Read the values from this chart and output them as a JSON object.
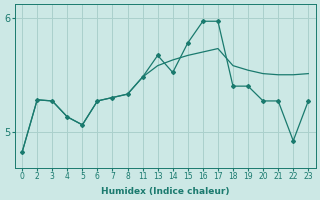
{
  "xlabel": "Humidex (Indice chaleur)",
  "background_color": "#cce8e5",
  "line_color": "#1a7a6e",
  "grid_color": "#aad0cc",
  "xtick_labels": [
    "0",
    "2",
    "3",
    "4",
    "5",
    "6",
    "7",
    "8",
    "11",
    "13",
    "14",
    "15",
    "16",
    "17",
    "18",
    "19",
    "20",
    "21",
    "22",
    "23"
  ],
  "ylim": [
    4.68,
    6.12
  ],
  "ytick_positions": [
    5.0,
    6.0
  ],
  "ytick_labels": [
    "5",
    "6"
  ],
  "series1_y": [
    4.82,
    5.28,
    5.27,
    5.13,
    5.06,
    5.27,
    5.3,
    5.33,
    5.48,
    5.58,
    5.63,
    5.67,
    5.7,
    5.73,
    5.58,
    5.54,
    5.51,
    5.5,
    5.5,
    5.51
  ],
  "series2_y": [
    4.82,
    5.28,
    5.27,
    5.13,
    5.06,
    5.27,
    5.3,
    5.33,
    5.48,
    5.67,
    5.52,
    5.78,
    5.97,
    5.97,
    5.4,
    5.4,
    5.27,
    5.27,
    4.92,
    5.27
  ]
}
